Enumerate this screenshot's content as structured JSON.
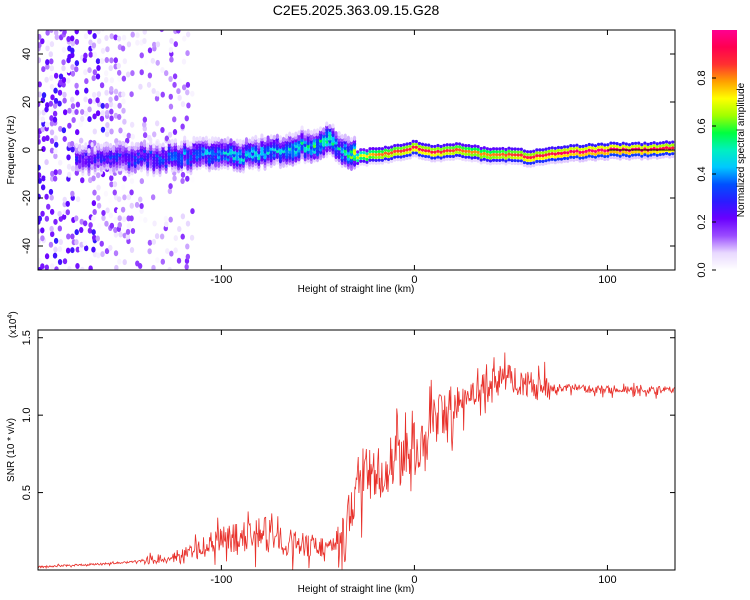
{
  "chart_data": [
    {
      "type": "heatmap",
      "title": "C2E5.2025.363.09.15.G28",
      "xlabel": "Height of straight line (km)",
      "ylabel": "Frequency (Hz)",
      "xlim": [
        -195,
        135
      ],
      "ylim": [
        -50,
        50
      ],
      "x_ticks": [
        -100,
        0,
        100
      ],
      "y_ticks": [
        -40,
        -20,
        0,
        20,
        40
      ],
      "colorbar": {
        "label": "Normalized spectral amplitude",
        "range": [
          0,
          1
        ],
        "ticks": [
          0.0,
          0.2,
          0.4,
          0.6,
          0.8
        ],
        "colors": [
          "#ffffff",
          "#e8d8ff",
          "#9a4cff",
          "#6a00ff",
          "#2a1cff",
          "#0050ff",
          "#00c8ff",
          "#00f0c0",
          "#00ff40",
          "#a0ff00",
          "#ffff00",
          "#ffa000",
          "#ff3030",
          "#ff0050",
          "#ff0090"
        ]
      },
      "ridge": {
        "description": "dominant frequency track vs height",
        "height_km": [
          -170,
          -150,
          -130,
          -110,
          -90,
          -70,
          -55,
          -45,
          -38,
          -30,
          -20,
          -10,
          0,
          10,
          20,
          30,
          40,
          50,
          60,
          70,
          80,
          100,
          120,
          135
        ],
        "frequency_hz": [
          -4,
          -3,
          -3,
          -2,
          -2,
          0,
          2,
          4,
          1,
          -3,
          -2,
          -1,
          1,
          -1,
          0,
          -1,
          -2,
          -2,
          -3,
          -2,
          -1,
          0,
          0,
          1
        ],
        "peak_amplitude": [
          0.25,
          0.3,
          0.35,
          0.4,
          0.45,
          0.45,
          0.5,
          0.55,
          0.45,
          0.65,
          0.8,
          0.85,
          0.9,
          0.9,
          0.85,
          0.8,
          0.8,
          0.85,
          0.9,
          0.9,
          0.95,
          0.98,
          0.95,
          0.9
        ]
      }
    },
    {
      "type": "line",
      "xlabel": "Height of straight line (km)",
      "ylabel": "SNR (10 * v/v)",
      "multiplier_label": "(x10",
      "multiplier_exp": "4",
      "xlim": [
        -195,
        135
      ],
      "ylim": [
        0,
        1.55
      ],
      "x_ticks": [
        -100,
        0,
        100
      ],
      "y_ticks": [
        0.5,
        1.0,
        1.5
      ],
      "color": "#e8302a",
      "series": [
        {
          "name": "SNR",
          "x": [
            -195,
            -180,
            -160,
            -140,
            -130,
            -120,
            -110,
            -100,
            -90,
            -80,
            -70,
            -60,
            -50,
            -40,
            -36,
            -33,
            -30,
            -25,
            -20,
            -15,
            -10,
            -5,
            0,
            5,
            10,
            15,
            20,
            25,
            30,
            35,
            40,
            45,
            50,
            55,
            60,
            70,
            80,
            90,
            100,
            110,
            120,
            135
          ],
          "y": [
            0.02,
            0.03,
            0.04,
            0.06,
            0.08,
            0.1,
            0.15,
            0.2,
            0.22,
            0.24,
            0.2,
            0.18,
            0.16,
            0.15,
            0.2,
            0.4,
            0.6,
            0.65,
            0.62,
            0.68,
            0.72,
            0.75,
            0.8,
            0.88,
            0.95,
            1.0,
            1.05,
            1.1,
            1.15,
            1.18,
            1.22,
            1.25,
            1.25,
            1.22,
            1.2,
            1.18,
            1.18,
            1.17,
            1.17,
            1.17,
            1.16,
            1.17
          ]
        }
      ]
    }
  ]
}
